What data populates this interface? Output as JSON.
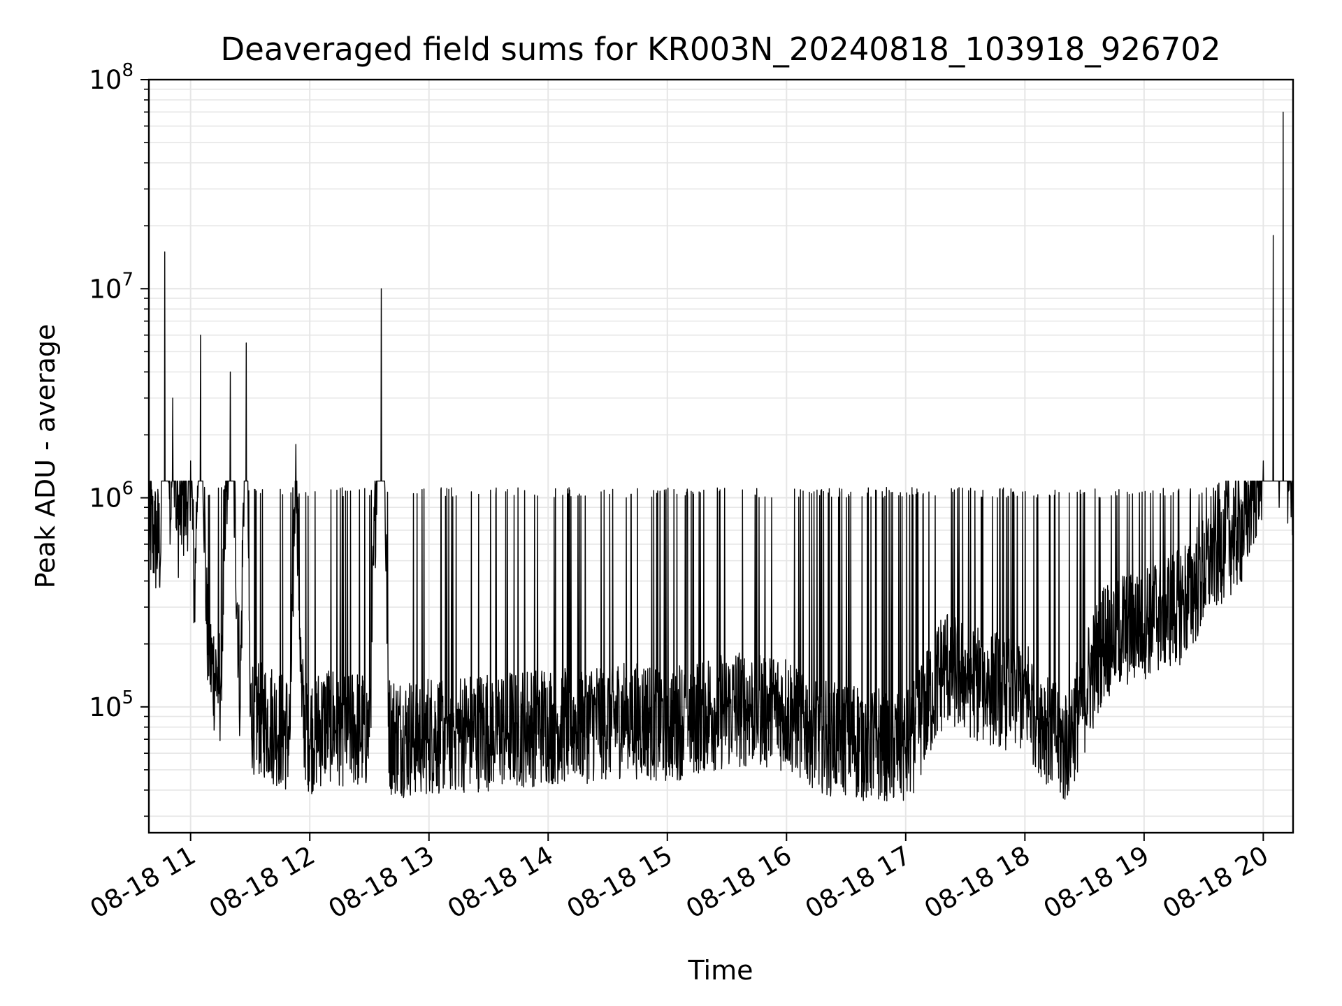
{
  "chart_data": {
    "type": "line",
    "title": "Deaveraged field sums for KR003N_20240818_103918_926702",
    "xlabel": "Time",
    "ylabel": "Peak ADU - average",
    "yscale": "log",
    "ylim": [
      25000,
      100000000
    ],
    "xlim": [
      "2024-08-18 10:39",
      "2024-08-18 20:15"
    ],
    "grid": true,
    "line_color": "#000000",
    "x_ticks": [
      {
        "time": "2024-08-18 11:00",
        "label": "08-18 11"
      },
      {
        "time": "2024-08-18 12:00",
        "label": "08-18 12"
      },
      {
        "time": "2024-08-18 13:00",
        "label": "08-18 13"
      },
      {
        "time": "2024-08-18 14:00",
        "label": "08-18 14"
      },
      {
        "time": "2024-08-18 15:00",
        "label": "08-18 15"
      },
      {
        "time": "2024-08-18 16:00",
        "label": "08-18 16"
      },
      {
        "time": "2024-08-18 17:00",
        "label": "08-18 17"
      },
      {
        "time": "2024-08-18 18:00",
        "label": "08-18 18"
      },
      {
        "time": "2024-08-18 19:00",
        "label": "08-18 19"
      },
      {
        "time": "2024-08-18 20:00",
        "label": "08-18 20"
      }
    ],
    "y_ticks": [
      {
        "value": 100000,
        "base": "10",
        "exp": "5"
      },
      {
        "value": 1000000,
        "base": "10",
        "exp": "6"
      },
      {
        "value": 10000000,
        "base": "10",
        "exp": "7"
      },
      {
        "value": 100000000,
        "base": "10",
        "exp": "8"
      }
    ],
    "series": [
      {
        "x": [
          "2024-08-18 10:39",
          "2024-08-18 10:42",
          "2024-08-18 10:45",
          "2024-08-18 10:47",
          "2024-08-18 10:50",
          "2024-08-18 10:51",
          "2024-08-18 10:53",
          "2024-08-18 10:55",
          "2024-08-18 10:58",
          "2024-08-18 11:00",
          "2024-08-18 11:02",
          "2024-08-18 11:05",
          "2024-08-18 11:08",
          "2024-08-18 11:10",
          "2024-08-18 11:15",
          "2024-08-18 11:20",
          "2024-08-18 11:25",
          "2024-08-18 11:28",
          "2024-08-18 11:30",
          "2024-08-18 11:40",
          "2024-08-18 11:50",
          "2024-08-18 11:53",
          "2024-08-18 11:56",
          "2024-08-18 12:00",
          "2024-08-18 12:10",
          "2024-08-18 12:20",
          "2024-08-18 12:30",
          "2024-08-18 12:36",
          "2024-08-18 12:40",
          "2024-08-18 12:50",
          "2024-08-18 13:00",
          "2024-08-18 13:20",
          "2024-08-18 13:40",
          "2024-08-18 14:00",
          "2024-08-18 14:20",
          "2024-08-18 14:40",
          "2024-08-18 15:00",
          "2024-08-18 15:20",
          "2024-08-18 15:40",
          "2024-08-18 16:00",
          "2024-08-18 16:20",
          "2024-08-18 16:40",
          "2024-08-18 17:00",
          "2024-08-18 17:20",
          "2024-08-18 17:40",
          "2024-08-18 18:00",
          "2024-08-18 18:20",
          "2024-08-18 18:40",
          "2024-08-18 19:00",
          "2024-08-18 19:20",
          "2024-08-18 19:40",
          "2024-08-18 19:50",
          "2024-08-18 20:00",
          "2024-08-18 20:05",
          "2024-08-18 20:08",
          "2024-08-18 20:10",
          "2024-08-18 20:12",
          "2024-08-18 20:15"
        ],
        "y": [
          700000,
          600000,
          550000,
          15000000,
          800000,
          3000000,
          700000,
          850000,
          900000,
          1500000,
          300000,
          6000000,
          250000,
          150000,
          120000,
          4000000,
          100000,
          5500000,
          90000,
          80000,
          70000,
          1800000,
          90000,
          70000,
          80000,
          75000,
          72000,
          10000000,
          70000,
          68000,
          70000,
          72000,
          75000,
          78000,
          80000,
          85000,
          80000,
          90000,
          95000,
          90000,
          70000,
          65000,
          60000,
          150000,
          120000,
          110000,
          60000,
          200000,
          250000,
          300000,
          600000,
          700000,
          1500000,
          18000000,
          900000,
          70000000,
          1200000,
          1000000
        ]
      }
    ]
  }
}
